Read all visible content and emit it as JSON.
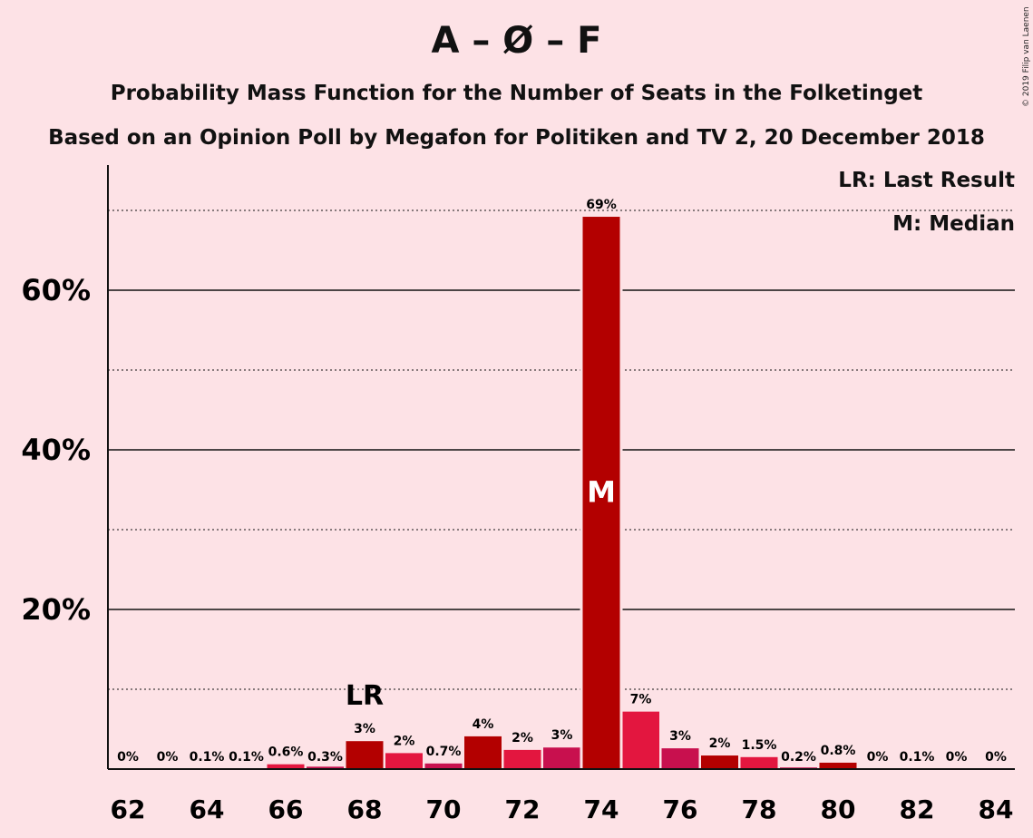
{
  "chart_data": {
    "type": "bar",
    "title": "A – Ø – F",
    "subtitle": "Probability Mass Function for the Number of Seats in the Folketinget",
    "subtitle2": "Based on an Opinion Poll by Megafon for Politiken and TV 2, 20 December 2018",
    "copyright": "© 2019 Filip van Laenen",
    "legend": [
      "LR: Last Result",
      "M: Median"
    ],
    "legend_placement": "top-right",
    "ylim": [
      0,
      75
    ],
    "y_ticks": [
      {
        "value": 20,
        "label": "20%"
      },
      {
        "value": 40,
        "label": "40%"
      },
      {
        "value": 60,
        "label": "60%"
      }
    ],
    "y_minor_gridlines": [
      10,
      30,
      50,
      70
    ],
    "x_ticks": [
      62,
      64,
      66,
      68,
      70,
      72,
      74,
      76,
      78,
      80,
      82,
      84
    ],
    "categories": [
      62,
      63,
      64,
      65,
      66,
      67,
      68,
      69,
      70,
      71,
      72,
      73,
      74,
      75,
      76,
      77,
      78,
      79,
      80,
      81,
      82,
      83,
      84
    ],
    "values": [
      0,
      0,
      0.1,
      0.1,
      0.6,
      0.3,
      3.5,
      2.0,
      0.7,
      4.1,
      2.4,
      2.7,
      69.2,
      7.2,
      2.6,
      1.7,
      1.5,
      0.2,
      0.8,
      0,
      0.1,
      0,
      0
    ],
    "labels": [
      "0%",
      "0%",
      "0.1%",
      "0.1%",
      "0.6%",
      "0.3%",
      "3%",
      "2%",
      "0.7%",
      "4%",
      "2%",
      "3%",
      "69%",
      "7%",
      "3%",
      "2%",
      "1.5%",
      "0.2%",
      "0.8%",
      "0%",
      "0.1%",
      "0%",
      "0%"
    ],
    "last_result": {
      "seats": 68,
      "label": "LR"
    },
    "median": {
      "seats": 74,
      "label": "M"
    },
    "colors": {
      "background": "#fde2e6",
      "bar_dark": "#b30000",
      "bar_mid": "#e3163f",
      "bar_alt": "#c8104e",
      "median_text": "#ffffff"
    },
    "bar_colors": [
      "#b30000",
      "#e3163f",
      "#b30000",
      "#e3163f",
      "#e3163f",
      "#c8104e",
      "#b30000",
      "#e3163f",
      "#c8104e",
      "#b30000",
      "#e3163f",
      "#c8104e",
      "#b30000",
      "#e3163f",
      "#c8104e",
      "#b30000",
      "#e3163f",
      "#c8104e",
      "#b30000",
      "#e3163f",
      "#c8104e",
      "#b30000",
      "#e3163f"
    ]
  }
}
